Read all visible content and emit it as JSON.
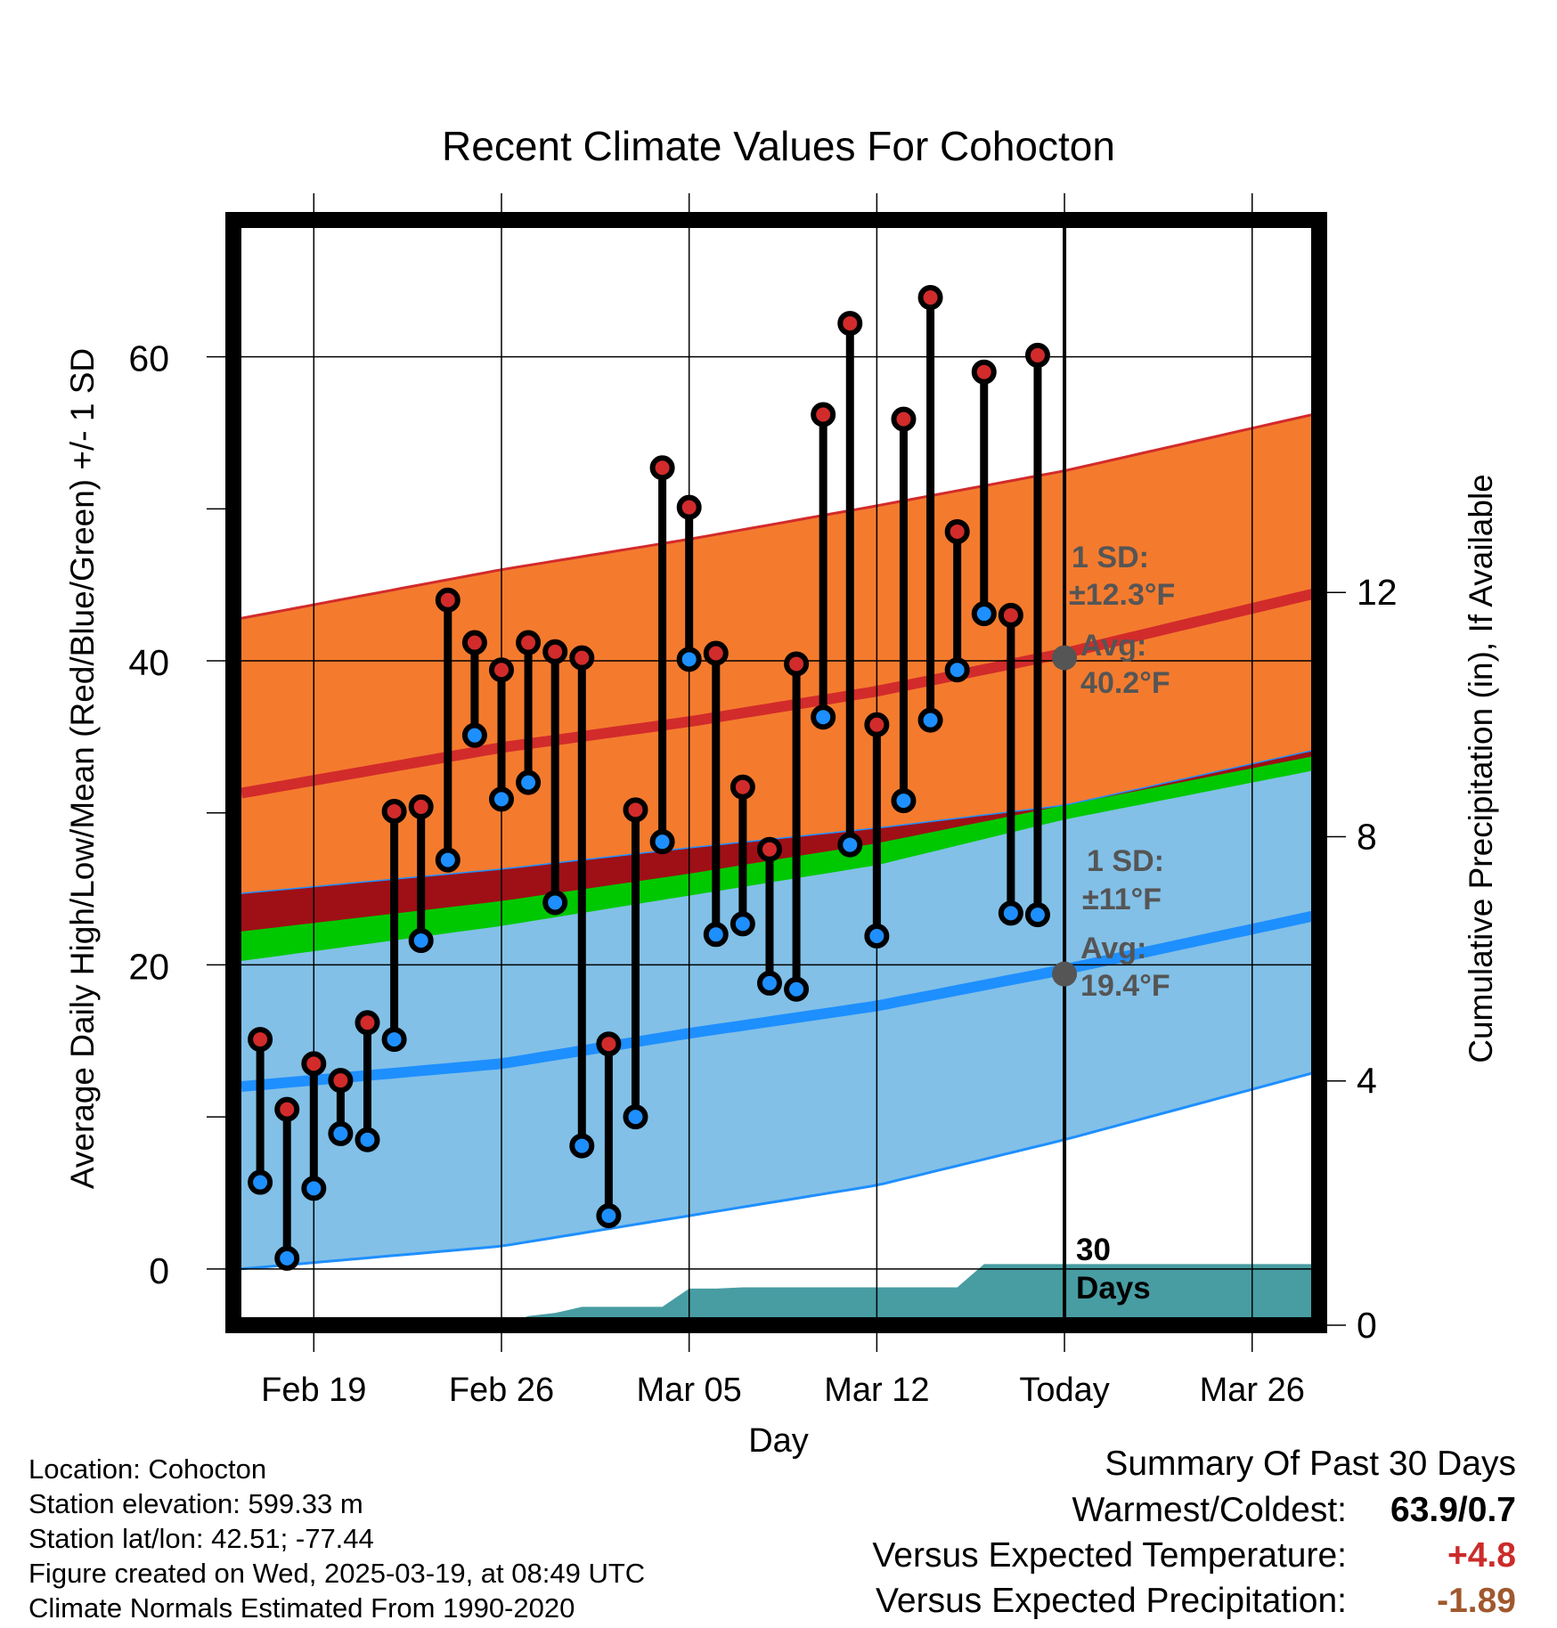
{
  "chart_data": {
    "type": "line",
    "title": "Recent Climate Values For Cohocton",
    "xlabel": "Day",
    "ylabel_left": "Average Daily High/Low/Mean (Red/Blue/Green) +/- 1 SD",
    "ylabel_right": "Cumulative Precipitation (in), If Available",
    "x_tick_labels": [
      {
        "day": 0,
        "label": "Feb 19"
      },
      {
        "day": 7,
        "label": "Feb 26"
      },
      {
        "day": 14,
        "label": "Mar 05"
      },
      {
        "day": 21,
        "label": "Mar 12"
      },
      {
        "day": 28,
        "label": "Today"
      },
      {
        "day": 35,
        "label": "Mar 26"
      }
    ],
    "xlim_days": [
      -3,
      37.5
    ],
    "ylim_temp": [
      -3.7,
      69
    ],
    "yticks_temp": [
      0,
      20,
      40,
      60
    ],
    "yticks_temp_minor": [
      10,
      30,
      50
    ],
    "ylim_precip": [
      0,
      18.1
    ],
    "yticks_precip": [
      0,
      4,
      8,
      12
    ],
    "today_day": 28,
    "normals": {
      "high_mean": [
        [
          -2.7,
          31.3
        ],
        [
          7,
          34.3
        ],
        [
          14,
          36.0
        ],
        [
          21,
          38.0
        ],
        [
          28,
          40.5
        ],
        [
          37.5,
          44.5
        ]
      ],
      "high_upper": [
        [
          -2.7,
          42.8
        ],
        [
          7,
          46.0
        ],
        [
          14,
          48.0
        ],
        [
          21,
          50.2
        ],
        [
          28,
          52.5
        ],
        [
          37.5,
          56.3
        ]
      ],
      "low_mean": [
        [
          -2.7,
          12.0
        ],
        [
          7,
          13.5
        ],
        [
          14,
          15.5
        ],
        [
          21,
          17.3
        ],
        [
          28,
          19.7
        ],
        [
          37.5,
          23.3
        ]
      ],
      "low_lower": [
        [
          -2.7,
          0.0
        ],
        [
          7,
          1.5
        ],
        [
          14,
          3.5
        ],
        [
          21,
          5.5
        ],
        [
          28,
          8.5
        ],
        [
          37.5,
          13.0
        ]
      ],
      "low_upper": [
        [
          -2.7,
          20.2
        ],
        [
          7,
          22.5
        ],
        [
          14,
          24.5
        ],
        [
          21,
          26.5
        ],
        [
          28,
          29.5
        ],
        [
          37.5,
          32.8
        ]
      ],
      "high_lower": [
        [
          -2.7,
          24.7
        ],
        [
          7,
          26.3
        ],
        [
          14,
          27.7
        ],
        [
          21,
          29.0
        ],
        [
          28,
          30.5
        ],
        [
          37.5,
          34.2
        ]
      ],
      "avg_mean": [
        [
          -2.7,
          22.2
        ],
        [
          7,
          24.2
        ],
        [
          14,
          26.0
        ],
        [
          21,
          28.0
        ],
        [
          28,
          30.5
        ],
        [
          37.5,
          33.8
        ]
      ]
    },
    "observations": [
      {
        "day": -2,
        "high": 15.1,
        "low": 5.7
      },
      {
        "day": -1,
        "high": 10.5,
        "low": 0.7
      },
      {
        "day": 0,
        "high": 13.5,
        "low": 5.3
      },
      {
        "day": 1,
        "high": 12.4,
        "low": 8.9
      },
      {
        "day": 2,
        "high": 16.2,
        "low": 8.5
      },
      {
        "day": 3,
        "high": 30.1,
        "low": 15.1
      },
      {
        "day": 4,
        "high": 30.4,
        "low": 21.6
      },
      {
        "day": 5,
        "high": 44.0,
        "low": 26.9
      },
      {
        "day": 6,
        "high": 41.2,
        "low": 35.1
      },
      {
        "day": 7,
        "high": 39.4,
        "low": 30.9
      },
      {
        "day": 8,
        "high": 41.2,
        "low": 32.0
      },
      {
        "day": 9,
        "high": 40.6,
        "low": 24.1
      },
      {
        "day": 10,
        "high": 40.2,
        "low": 8.1
      },
      {
        "day": 11,
        "high": 14.8,
        "low": 3.5
      },
      {
        "day": 12,
        "high": 30.2,
        "low": 10.0
      },
      {
        "day": 13,
        "high": 52.7,
        "low": 28.1
      },
      {
        "day": 14,
        "high": 50.1,
        "low": 40.1
      },
      {
        "day": 15,
        "high": 40.5,
        "low": 22.0
      },
      {
        "day": 16,
        "high": 31.7,
        "low": 22.7
      },
      {
        "day": 17,
        "high": 27.6,
        "low": 18.8
      },
      {
        "day": 18,
        "high": 39.8,
        "low": 18.4
      },
      {
        "day": 19,
        "high": 56.2,
        "low": 36.3
      },
      {
        "day": 20,
        "high": 62.2,
        "low": 27.9
      },
      {
        "day": 21,
        "high": 35.8,
        "low": 21.9
      },
      {
        "day": 22,
        "high": 55.9,
        "low": 30.8
      },
      {
        "day": 23,
        "high": 63.9,
        "low": 36.1
      },
      {
        "day": 24,
        "high": 48.5,
        "low": 39.4
      },
      {
        "day": 25,
        "high": 59.0,
        "low": 43.1
      },
      {
        "day": 26,
        "high": 43.0,
        "low": 23.4
      },
      {
        "day": 27,
        "high": 60.1,
        "low": 23.3
      }
    ],
    "precip_cumulative": [
      [
        7,
        0.0
      ],
      [
        8,
        0.15
      ],
      [
        9,
        0.2
      ],
      [
        10,
        0.3
      ],
      [
        11,
        0.3
      ],
      [
        12,
        0.3
      ],
      [
        13,
        0.3
      ],
      [
        14,
        0.6
      ],
      [
        15,
        0.6
      ],
      [
        16,
        0.62
      ],
      [
        17,
        0.62
      ],
      [
        18,
        0.62
      ],
      [
        19,
        0.62
      ],
      [
        20,
        0.62
      ],
      [
        21,
        0.62
      ],
      [
        22,
        0.62
      ],
      [
        23,
        0.62
      ],
      [
        24,
        0.62
      ],
      [
        25,
        1.0
      ],
      [
        37.5,
        1.0
      ]
    ],
    "annotations": {
      "high_sd_label": "1 SD:",
      "high_sd_value": "±12.3°F",
      "high_avg_label": "Avg:",
      "high_avg_value": "40.2°F",
      "high_avg": 40.2,
      "low_sd_label": "1 SD:",
      "low_sd_value": "±11°F",
      "low_avg_label": "Avg:",
      "low_avg_value": "19.4°F",
      "low_avg": 19.4,
      "days_count": "30",
      "days_label": "Days"
    },
    "colors": {
      "high_band": "#f47b2e",
      "high_line": "#d22b2b",
      "low_band": "#82c0e7",
      "low_line": "#1e8fff",
      "mean_band": "#00c800",
      "overlap_band": "#9e1016",
      "precip_fill": "#479da2",
      "high_dot": "#d22b2b",
      "low_dot": "#1e8fff",
      "annotation": "#555555"
    }
  },
  "info": {
    "location": "Location: Cohocton",
    "elevation": "Station elevation: 599.33 m",
    "latlon": "Station lat/lon: 42.51; -77.44",
    "created": "Figure created on Wed, 2025-03-19, at 08:49 UTC",
    "normals": "Climate Normals Estimated From 1990-2020"
  },
  "summary": {
    "title": "Summary Of Past 30 Days",
    "warm_cold_label": "Warmest/Coldest:",
    "warm_cold_value": "63.9/0.7",
    "temp_label": "Versus Expected Temperature:",
    "temp_value": "+4.8",
    "precip_label": "Versus Expected Precipitation:",
    "precip_value": "-1.89"
  }
}
